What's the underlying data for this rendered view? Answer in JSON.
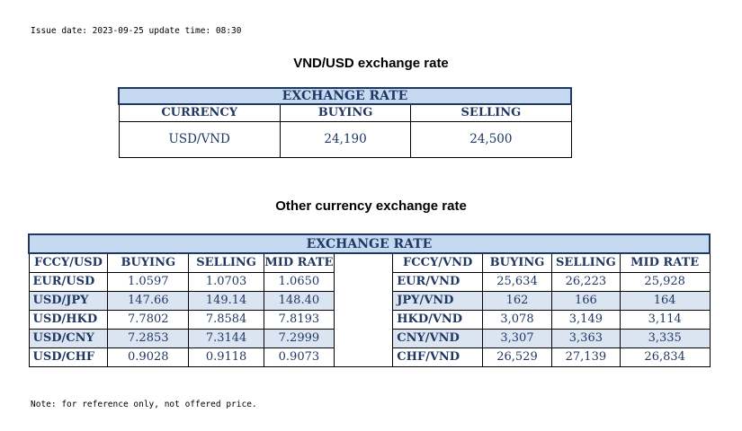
{
  "issue_line": "Issue date: 2023-09-25 update time: 08:30",
  "heading_vnd_usd": "VND/USD exchange rate",
  "heading_other": "Other currency exchange rate",
  "note": "Note: for reference only, not offered price.",
  "table_main": {
    "title": "EXCHANGE RATE",
    "headers": [
      "CURRENCY",
      "BUYING",
      "SELLING"
    ],
    "row": [
      "USD/VND",
      "24,190",
      "24,500"
    ]
  },
  "table_other": {
    "title": "EXCHANGE  RATE",
    "left_headers": [
      "FCCY/USD",
      "BUYING",
      "SELLING",
      "MID RATE"
    ],
    "right_headers": [
      "FCCY/VND",
      "BUYING",
      "SELLING",
      "MID RATE"
    ],
    "rows": [
      {
        "left": [
          "EUR/USD",
          "1.0597",
          "1.0703",
          "1.0650"
        ],
        "right": [
          "EUR/VND",
          "25,634",
          "26,223",
          "25,928"
        ]
      },
      {
        "left": [
          "USD/JPY",
          "147.66",
          "149.14",
          "148.40"
        ],
        "right": [
          "JPY/VND",
          "162",
          "166",
          "164"
        ]
      },
      {
        "left": [
          "USD/HKD",
          "7.7802",
          "7.8584",
          "7.8193"
        ],
        "right": [
          "HKD/VND",
          "3,078",
          "3,149",
          "3,114"
        ]
      },
      {
        "left": [
          "USD/CNY",
          "7.2853",
          "7.3144",
          "7.2999"
        ],
        "right": [
          "CNY/VND",
          "3,307",
          "3,363",
          "3,335"
        ]
      },
      {
        "left": [
          "USD/CHF",
          "0.9028",
          "0.9118",
          "0.9073"
        ],
        "right": [
          "CHF/VND",
          "26,529",
          "27,139",
          "26,834"
        ]
      }
    ]
  }
}
